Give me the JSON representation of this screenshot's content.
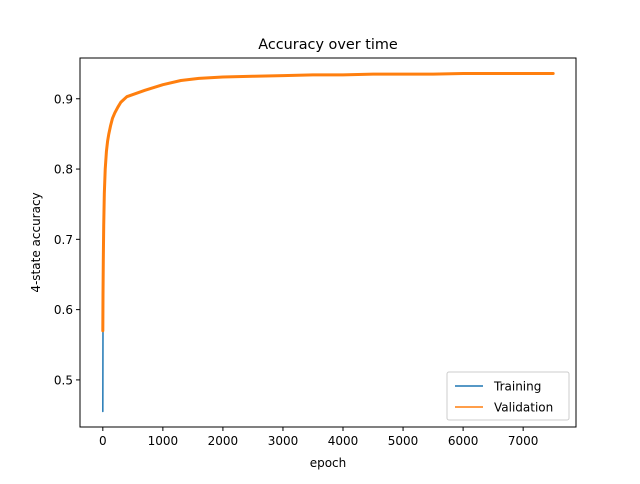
{
  "chart_data": {
    "type": "line",
    "title": "Accuracy over time",
    "xlabel": "epoch",
    "ylabel": "4-state accuracy",
    "xlim": [
      -380,
      7880
    ],
    "ylim": [
      0.433,
      0.958
    ],
    "xticks": [
      0,
      1000,
      2000,
      3000,
      4000,
      5000,
      6000,
      7000
    ],
    "xtick_labels": [
      "0",
      "1000",
      "2000",
      "3000",
      "4000",
      "5000",
      "6000",
      "7000"
    ],
    "yticks": [
      0.5,
      0.6,
      0.7,
      0.8,
      0.9
    ],
    "ytick_labels": [
      "0.5",
      "0.6",
      "0.7",
      "0.8",
      "0.9"
    ],
    "grid": false,
    "legend": {
      "position": "lower-right"
    },
    "series": [
      {
        "name": "Training",
        "color": "#1f77b4",
        "x": [
          0,
          3,
          8,
          15,
          25,
          40,
          60,
          80,
          100,
          130,
          160,
          200,
          250,
          300,
          400,
          500,
          700,
          1000,
          1300,
          1600,
          2000,
          2500,
          3000,
          3500,
          4000,
          4500,
          5000,
          5500,
          6000,
          6500,
          7000,
          7500
        ],
        "y": [
          0.455,
          0.58,
          0.66,
          0.72,
          0.765,
          0.8,
          0.825,
          0.84,
          0.85,
          0.862,
          0.872,
          0.88,
          0.888,
          0.895,
          0.903,
          0.906,
          0.912,
          0.92,
          0.926,
          0.929,
          0.931,
          0.932,
          0.933,
          0.934,
          0.934,
          0.935,
          0.935,
          0.935,
          0.936,
          0.936,
          0.936,
          0.936
        ]
      },
      {
        "name": "Validation",
        "color": "#ff7f0e",
        "x": [
          0,
          3,
          8,
          15,
          25,
          40,
          60,
          80,
          100,
          130,
          160,
          200,
          250,
          300,
          400,
          500,
          700,
          1000,
          1300,
          1600,
          2000,
          2500,
          3000,
          3500,
          4000,
          4500,
          5000,
          5500,
          6000,
          6500,
          7000,
          7500
        ],
        "y": [
          0.57,
          0.62,
          0.67,
          0.72,
          0.765,
          0.8,
          0.825,
          0.84,
          0.85,
          0.862,
          0.872,
          0.88,
          0.888,
          0.895,
          0.903,
          0.906,
          0.912,
          0.92,
          0.926,
          0.929,
          0.931,
          0.932,
          0.933,
          0.934,
          0.934,
          0.935,
          0.935,
          0.935,
          0.936,
          0.936,
          0.936,
          0.936
        ]
      }
    ]
  }
}
